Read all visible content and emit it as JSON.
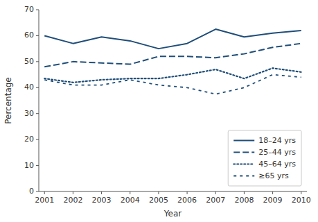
{
  "chart_data": {
    "type": "line",
    "xlabel": "Year",
    "ylabel": "Percentage",
    "x": [
      2001,
      2002,
      2003,
      2004,
      2005,
      2006,
      2007,
      2008,
      2009,
      2010
    ],
    "series": [
      {
        "name": "18–24 yrs",
        "color": "#1f4e79",
        "line_style": "solid",
        "values": [
          60,
          57,
          59.5,
          58,
          55,
          57,
          62.5,
          59.5,
          61,
          62
        ]
      },
      {
        "name": "25–44 yrs",
        "color": "#1f4e79",
        "line_style": "long-dash",
        "values": [
          48,
          50,
          49.5,
          49,
          52,
          52,
          51.5,
          53,
          55.5,
          57
        ]
      },
      {
        "name": "45–64 yrs",
        "color": "#1f4e79",
        "line_style": "dotted",
        "values": [
          43.5,
          42,
          43,
          43.5,
          43.5,
          45,
          47,
          43.5,
          47.5,
          46
        ]
      },
      {
        "name": "≥65 yrs",
        "color": "#1f4e79",
        "line_style": "short-dash",
        "values": [
          43,
          41,
          41,
          43,
          41,
          40,
          37.5,
          40,
          45,
          44
        ]
      }
    ],
    "xlim": [
      2000.8,
      2010.2
    ],
    "xticks": [
      2001,
      2002,
      2003,
      2004,
      2005,
      2006,
      2007,
      2008,
      2009,
      2010
    ],
    "ylim": [
      0,
      70
    ],
    "yticks": [
      0,
      10,
      20,
      30,
      40,
      50,
      60,
      70
    ],
    "grid": false,
    "legend": "lower right"
  }
}
